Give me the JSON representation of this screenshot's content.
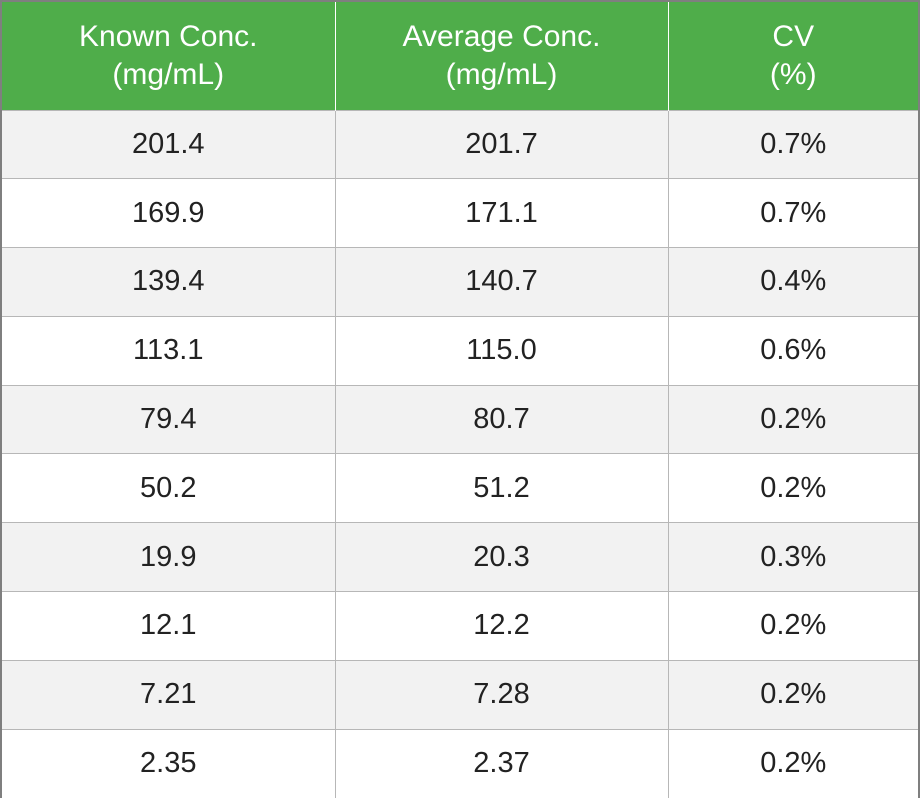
{
  "chart_data": {
    "type": "table",
    "columns": [
      {
        "line1": "Known Conc.",
        "line2": "(mg/mL)"
      },
      {
        "line1": "Average Conc.",
        "line2": "(mg/mL)"
      },
      {
        "line1": "CV",
        "line2": "(%)"
      }
    ],
    "rows": [
      [
        "201.4",
        "201.7",
        "0.7%"
      ],
      [
        "169.9",
        "171.1",
        "0.7%"
      ],
      [
        "139.4",
        "140.7",
        "0.4%"
      ],
      [
        "113.1",
        "115.0",
        "0.6%"
      ],
      [
        "79.4",
        "80.7",
        "0.2%"
      ],
      [
        "50.2",
        "51.2",
        "0.2%"
      ],
      [
        "19.9",
        "20.3",
        "0.3%"
      ],
      [
        "12.1",
        "12.2",
        "0.2%"
      ],
      [
        "7.21",
        "7.28",
        "0.2%"
      ],
      [
        "2.35",
        "2.37",
        "0.2%"
      ]
    ]
  },
  "colors": {
    "header_bg": "#4fad4a",
    "header_text": "#ffffff",
    "row_odd_bg": "#f2f2f2",
    "row_even_bg": "#ffffff",
    "grid": "#b7b7b7"
  }
}
